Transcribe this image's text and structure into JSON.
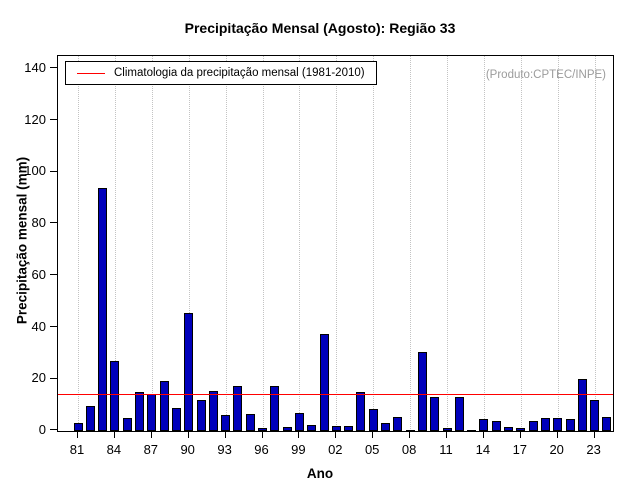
{
  "chart_data": {
    "type": "bar",
    "title": "Precipitação Mensal (Agosto): Região 33",
    "xlabel": "Ano",
    "ylabel": "Precipitação mensal (mm)",
    "ylim": [
      0,
      140
    ],
    "y_ticks": [
      0,
      20,
      40,
      60,
      80,
      100,
      120,
      140
    ],
    "x_ticks": [
      {
        "label": "81",
        "year": 1981
      },
      {
        "label": "84",
        "year": 1984
      },
      {
        "label": "87",
        "year": 1987
      },
      {
        "label": "90",
        "year": 1990
      },
      {
        "label": "93",
        "year": 1993
      },
      {
        "label": "96",
        "year": 1996
      },
      {
        "label": "99",
        "year": 1999
      },
      {
        "label": "02",
        "year": 2002
      },
      {
        "label": "05",
        "year": 2005
      },
      {
        "label": "08",
        "year": 2008
      },
      {
        "label": "11",
        "year": 2011
      },
      {
        "label": "14",
        "year": 2014
      },
      {
        "label": "17",
        "year": 2017
      },
      {
        "label": "20",
        "year": 2020
      },
      {
        "label": "23",
        "year": 2023
      }
    ],
    "x": [
      1981,
      1982,
      1983,
      1984,
      1985,
      1986,
      1987,
      1988,
      1989,
      1990,
      1991,
      1992,
      1993,
      1994,
      1995,
      1996,
      1997,
      1998,
      1999,
      2000,
      2001,
      2002,
      2003,
      2004,
      2005,
      2006,
      2007,
      2008,
      2009,
      2010,
      2011,
      2012,
      2013,
      2014,
      2015,
      2016,
      2017,
      2018,
      2019,
      2020,
      2021,
      2022,
      2023,
      2024
    ],
    "values": [
      3,
      9.5,
      94,
      27,
      5,
      15,
      14.5,
      19.5,
      9,
      45.5,
      12,
      15.5,
      6,
      17.5,
      6.5,
      1,
      17.5,
      1.5,
      7,
      2.5,
      37.5,
      2,
      2,
      15,
      8.5,
      3,
      5.5,
      0.5,
      30.5,
      13,
      1,
      13,
      0.5,
      4.5,
      4,
      1.5,
      1,
      4,
      5,
      5,
      4.5,
      20,
      12,
      5.5
    ],
    "series_name": "Precipitação mensal (Agosto)",
    "bar_color": "#0000bb",
    "climatology": {
      "value": 14.5,
      "label": "Climatologia da precipitação mensal (1981-2010)",
      "color": "#ff0000"
    },
    "annotation": "(Produto:CPTEC/INPE)",
    "grid": {
      "vertical": "dotted",
      "at": "x-ticks",
      "color": "#c3c3c3"
    },
    "legend_position": "top-left"
  }
}
